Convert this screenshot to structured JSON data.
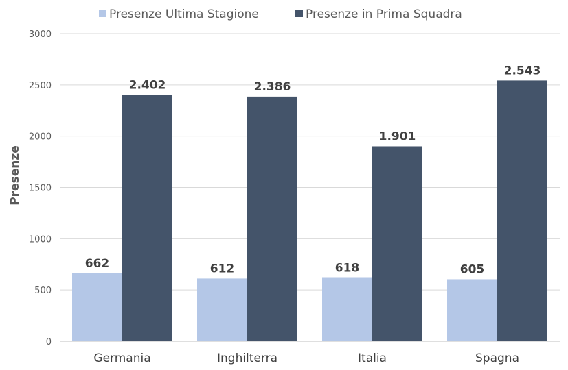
{
  "chart_data": {
    "type": "bar",
    "title": "",
    "xlabel": "",
    "ylabel": "Presenze",
    "ylim": [
      0,
      3000
    ],
    "yticks": [
      0,
      500,
      1000,
      1500,
      2000,
      2500,
      3000
    ],
    "grid": true,
    "legend_position": "top",
    "categories": [
      "Germania",
      "Inghilterra",
      "Italia",
      "Spagna"
    ],
    "series": [
      {
        "name": "Presenze Ultima Stagione",
        "color": "#b4c7e7",
        "values": [
          662,
          612,
          618,
          605
        ],
        "labels": [
          "662",
          "612",
          "618",
          "605"
        ]
      },
      {
        "name": "Presenze in Prima Squadra",
        "color": "#44546a",
        "values": [
          2402,
          2386,
          1901,
          2543
        ],
        "labels": [
          "2.402",
          "2.386",
          "1.901",
          "2.543"
        ]
      }
    ]
  }
}
